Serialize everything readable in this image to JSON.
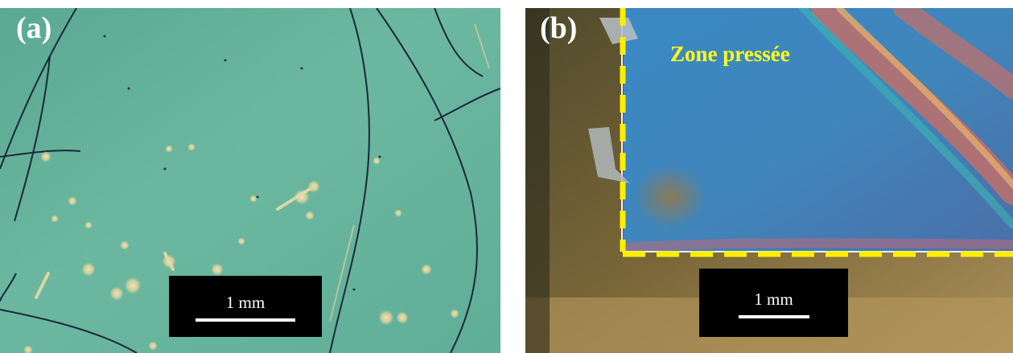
{
  "figure": {
    "panel_a": {
      "label": "(a)",
      "scalebar_text": "1 mm",
      "colors": {
        "background": "#67b39d",
        "crack": "#1d2a3a",
        "defect": "#e8d59a"
      }
    },
    "panel_b": {
      "label": "(b)",
      "zone_label": "Zone pressée",
      "scalebar_text": "1 mm",
      "colors": {
        "pressed_zone": "#3f89bf",
        "interference_fringe": "#c2706a",
        "outside": "#6b5a34",
        "boundary": "#ffee00"
      }
    }
  }
}
